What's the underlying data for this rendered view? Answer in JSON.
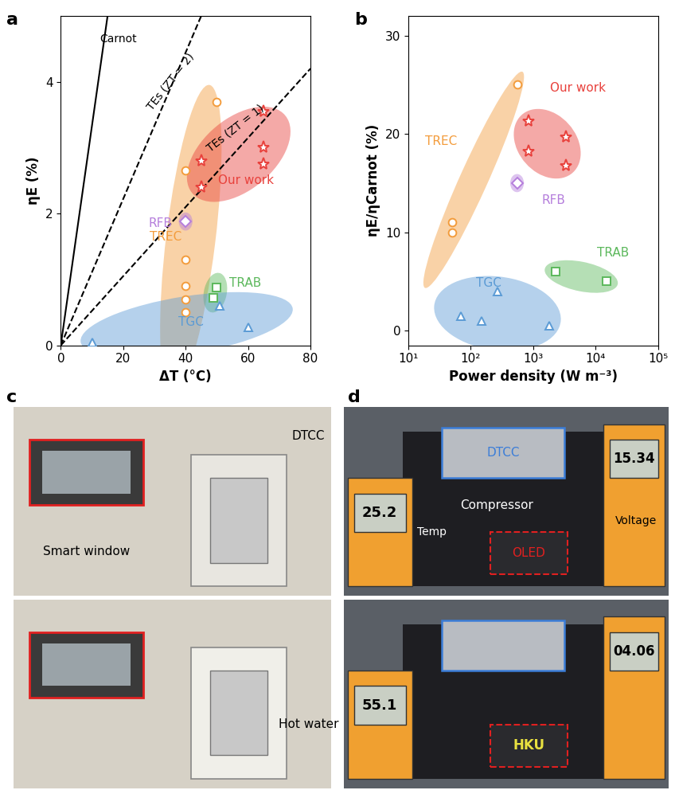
{
  "chart_data": [
    {
      "panel": "a",
      "type": "scatter",
      "x_label": "ΔT (°C)",
      "y_label": "ηE (%)",
      "xlim": [
        0,
        80
      ],
      "xticks": [
        0,
        20,
        40,
        60,
        80
      ],
      "ylim": [
        0,
        5
      ],
      "yticks": [
        0,
        2,
        4
      ],
      "lines": [
        {
          "name": "Carnot",
          "color": "#000000",
          "line_style": "solid",
          "x": [
            0,
            15
          ],
          "values": [
            0,
            5
          ]
        },
        {
          "name": "TEs (ZT = 2)",
          "color": "#000000",
          "line_style": "dashed",
          "x": [
            0,
            45
          ],
          "values": [
            0,
            5
          ]
        },
        {
          "name": "TEs (ZT = 1)",
          "color": "#000000",
          "line_style": "dashed",
          "x": [
            0,
            80
          ],
          "values": [
            0,
            4.2
          ]
        }
      ],
      "series": [
        {
          "name": "TREC",
          "color": "#f39c3c",
          "marker": "o",
          "x": [
            40,
            40,
            40,
            40,
            40,
            50
          ],
          "values": [
            2.65,
            1.3,
            0.9,
            0.7,
            0.5,
            3.7
          ]
        },
        {
          "name": "Our work",
          "color": "#e8413c",
          "marker": "*",
          "x": [
            45,
            45,
            65,
            65,
            65
          ],
          "values": [
            2.8,
            2.4,
            3.55,
            3.0,
            2.75
          ]
        },
        {
          "name": "RFB",
          "color": "#b57edc",
          "marker": "D",
          "x": [
            40
          ],
          "values": [
            1.88
          ]
        },
        {
          "name": "TRAB",
          "color": "#5cb85c",
          "marker": "s",
          "x": [
            50,
            49
          ],
          "values": [
            0.88,
            0.72
          ]
        },
        {
          "name": "TGC",
          "color": "#5b9bd5",
          "marker": "^",
          "x": [
            10,
            51,
            60
          ],
          "values": [
            0.05,
            0.6,
            0.27
          ]
        }
      ]
    },
    {
      "panel": "b",
      "type": "scatter",
      "x_label": "Power density (W m⁻³)",
      "y_label": "ηE/ηCarnot (%)",
      "log": "x",
      "xlim": [
        10,
        100000
      ],
      "xticks": [
        {
          "value": 10,
          "label": "10¹"
        },
        {
          "value": 100,
          "label": "10²"
        },
        {
          "value": 1000,
          "label": "10³"
        },
        {
          "value": 10000,
          "label": "10⁴"
        },
        {
          "value": 100000,
          "label": "10⁵"
        }
      ],
      "ylim": [
        -1.5,
        32
      ],
      "yticks": [
        0,
        10,
        20,
        30
      ],
      "series": [
        {
          "name": "TREC",
          "color": "#f39c3c",
          "marker": "o",
          "x": [
            50,
            50,
            550
          ],
          "values": [
            11,
            10,
            25
          ]
        },
        {
          "name": "Our work",
          "color": "#e8413c",
          "marker": "*",
          "x": [
            850,
            850,
            3300,
            3300
          ],
          "values": [
            21.3,
            18.2,
            19.7,
            16.8
          ]
        },
        {
          "name": "RFB",
          "color": "#b57edc",
          "marker": "D",
          "x": [
            550
          ],
          "values": [
            15
          ]
        },
        {
          "name": "TRAB",
          "color": "#5cb85c",
          "marker": "s",
          "x": [
            2300,
            15000
          ],
          "values": [
            6,
            5
          ]
        },
        {
          "name": "TGC",
          "color": "#5b9bd5",
          "marker": "^",
          "x": [
            70,
            150,
            270,
            1800
          ],
          "values": [
            1.5,
            1,
            4,
            0.5
          ]
        }
      ]
    }
  ],
  "photos": [
    {
      "panel": "c",
      "frames": [
        {
          "window": "Smart window",
          "cell": "DTCC"
        },
        {
          "bath": "Hot water"
        }
      ]
    },
    {
      "panel": "d",
      "frames": [
        {
          "cell": "DTCC",
          "compressor": "Compressor",
          "voltage_label": "Voltage",
          "temp_label": "Temp",
          "oled": "OLED",
          "temp": "25.2",
          "voltage": "15.34"
        },
        {
          "temp": "55.1",
          "voltage": "04.06",
          "oled_text": "HKU"
        }
      ]
    }
  ]
}
